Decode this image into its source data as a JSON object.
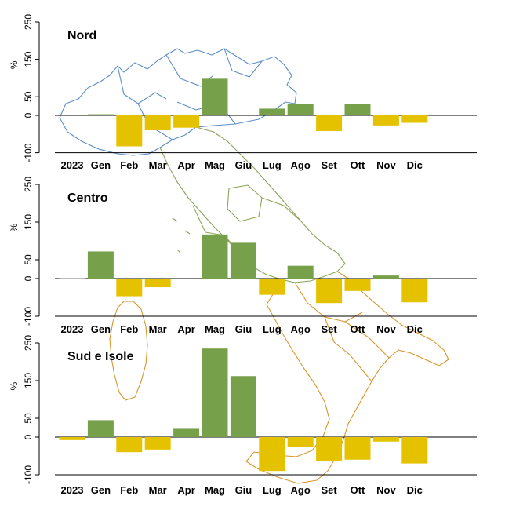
{
  "colors": {
    "positive": "#77a04a",
    "negative": "#e5c200",
    "map_north": "#5b8fc9",
    "map_center": "#8aa456",
    "map_south": "#d8952a"
  },
  "chart_data": [
    {
      "type": "bar",
      "title": "Nord",
      "ylabel": "%",
      "year_label": "2023",
      "categories": [
        "2023",
        "Gen",
        "Feb",
        "Mar",
        "Apr",
        "Mag",
        "Giu",
        "Lug",
        "Ago",
        "Set",
        "Ott",
        "Nov",
        "Dic"
      ],
      "values": [
        null,
        3,
        -83,
        -40,
        -33,
        98,
        null,
        18,
        30,
        -42,
        30,
        -27,
        -20
      ],
      "yticks": [
        250,
        150,
        50,
        0,
        -100
      ],
      "ylim": [
        -100,
        250
      ]
    },
    {
      "type": "bar",
      "title": "Centro",
      "ylabel": "%",
      "year_label": "2023",
      "categories": [
        "2023",
        "Gen",
        "Feb",
        "Mar",
        "Apr",
        "Mag",
        "Giu",
        "Lug",
        "Ago",
        "Set",
        "Ott",
        "Nov",
        "Dic"
      ],
      "values": [
        0,
        72,
        -47,
        -23,
        null,
        117,
        95,
        -43,
        34,
        -65,
        -33,
        8,
        -63
      ],
      "yticks": [
        250,
        150,
        50,
        0,
        -100
      ],
      "ylim": [
        -100,
        250
      ]
    },
    {
      "type": "bar",
      "title": "Sud e Isole",
      "ylabel": "%",
      "year_label": "2023",
      "categories": [
        "2023",
        "Gen",
        "Feb",
        "Mar",
        "Apr",
        "Mag",
        "Giu",
        "Lug",
        "Ago",
        "Set",
        "Ott",
        "Nov",
        "Dic"
      ],
      "values": [
        -8,
        45,
        -40,
        -33,
        22,
        235,
        162,
        -90,
        -27,
        -63,
        -60,
        -12,
        -70
      ],
      "yticks": [
        250,
        150,
        50,
        0,
        -100
      ],
      "ylim": [
        -100,
        250
      ]
    }
  ]
}
